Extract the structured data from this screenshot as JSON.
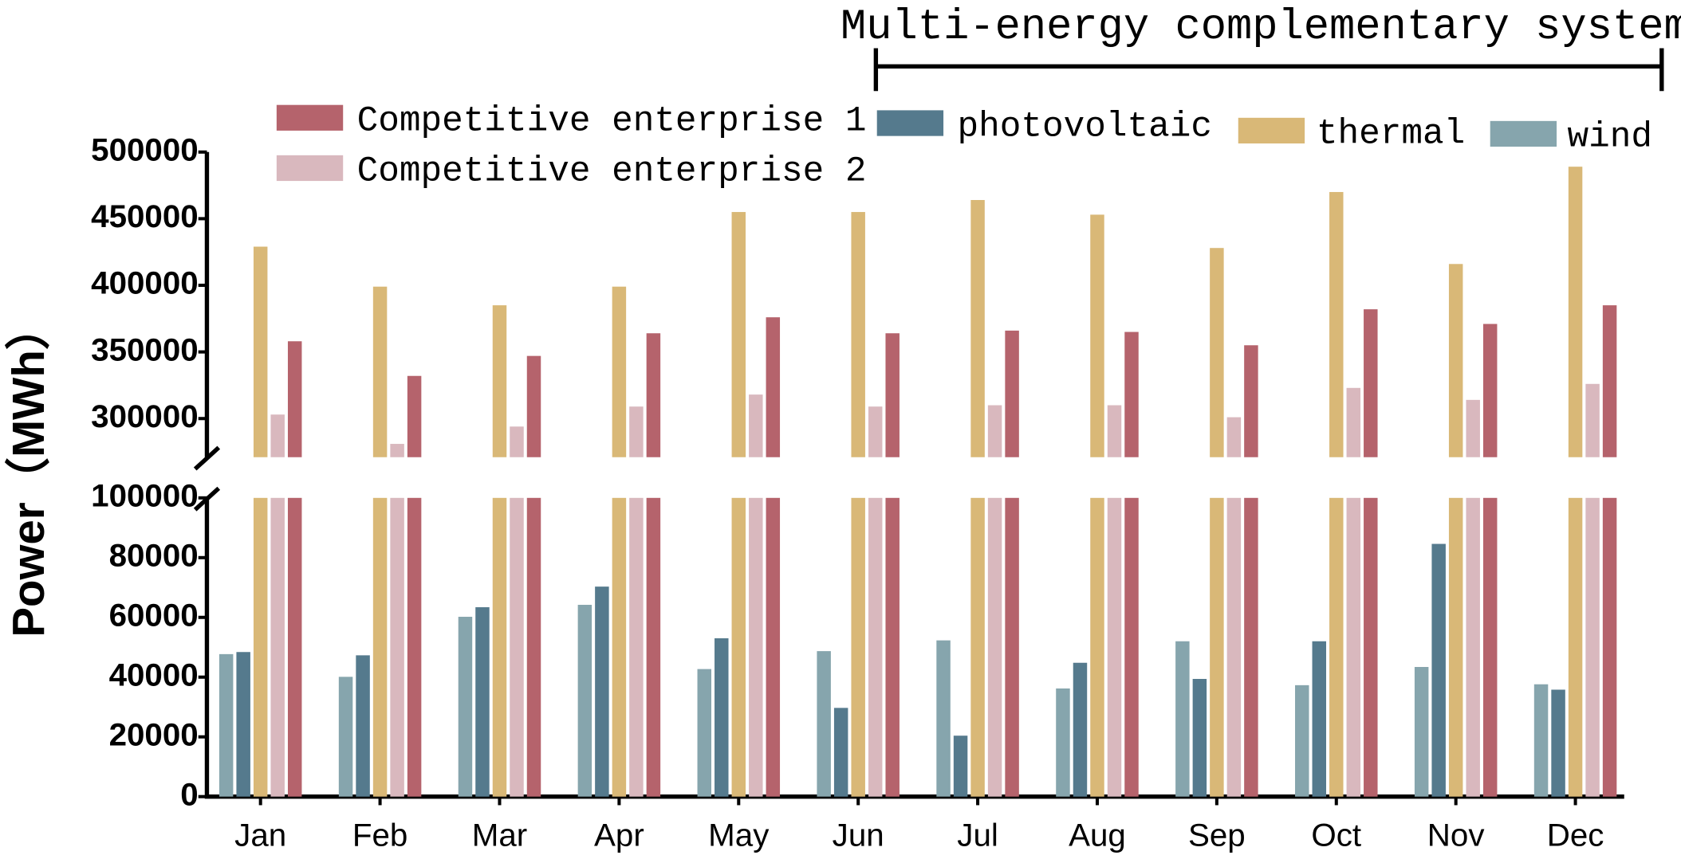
{
  "chart_data": {
    "type": "bar",
    "annotation": "Multi-energy complementary system",
    "ylabel": "Power（MWh）",
    "categories": [
      "Jan",
      "Feb",
      "Mar",
      "Apr",
      "May",
      "Jun",
      "Jul",
      "Aug",
      "Sep",
      "Oct",
      "Nov",
      "Dec"
    ],
    "series": [
      {
        "name": "wind",
        "color": "#86a5ad",
        "values": [
          47700,
          40100,
          60200,
          64200,
          42700,
          48700,
          52300,
          36200,
          52000,
          37300,
          43400,
          37600
        ]
      },
      {
        "name": "photovoltaic",
        "color": "#557a8d",
        "values": [
          48400,
          47300,
          63400,
          70300,
          53000,
          29700,
          20400,
          44800,
          39400,
          52000,
          84600,
          35800
        ]
      },
      {
        "name": "thermal",
        "color": "#d9b877",
        "values": [
          429000,
          399000,
          385000,
          399000,
          455000,
          455000,
          464000,
          453000,
          428000,
          470000,
          416000,
          489000
        ]
      },
      {
        "name": "Competitive enterprise 2",
        "color": "#d9b8be",
        "values": [
          303000,
          281000,
          294000,
          309000,
          318000,
          309000,
          310000,
          310000,
          301000,
          323000,
          314000,
          326000
        ]
      },
      {
        "name": "Competitive enterprise 1",
        "color": "#b5636c",
        "values": [
          358000,
          332000,
          347000,
          364000,
          376000,
          364000,
          366000,
          365000,
          355000,
          382000,
          371000,
          385000
        ]
      }
    ],
    "ylim_lower": [
      0,
      100000
    ],
    "yticks_lower": [
      0,
      20000,
      40000,
      60000,
      80000,
      100000
    ],
    "ylim_upper": [
      271000,
      500000
    ],
    "yticks_upper": [
      300000,
      350000,
      400000,
      450000,
      500000
    ]
  }
}
